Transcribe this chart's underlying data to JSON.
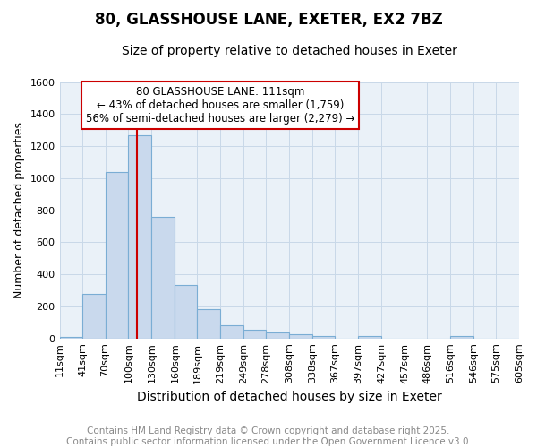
{
  "title1": "80, GLASSHOUSE LANE, EXETER, EX2 7BZ",
  "title2": "Size of property relative to detached houses in Exeter",
  "xlabel": "Distribution of detached houses by size in Exeter",
  "ylabel": "Number of detached properties",
  "bin_labels": [
    "11sqm",
    "41sqm",
    "70sqm",
    "100sqm",
    "130sqm",
    "160sqm",
    "189sqm",
    "219sqm",
    "249sqm",
    "278sqm",
    "308sqm",
    "338sqm",
    "367sqm",
    "397sqm",
    "427sqm",
    "457sqm",
    "486sqm",
    "516sqm",
    "546sqm",
    "575sqm",
    "605sqm"
  ],
  "bin_edges": [
    11,
    41,
    70,
    100,
    130,
    160,
    189,
    219,
    249,
    278,
    308,
    338,
    367,
    397,
    427,
    457,
    486,
    516,
    546,
    575,
    605
  ],
  "bar_heights": [
    10,
    280,
    1040,
    1270,
    760,
    335,
    185,
    80,
    55,
    35,
    25,
    15,
    0,
    15,
    0,
    0,
    0,
    15,
    0,
    0
  ],
  "bar_color": "#c9d9ed",
  "bar_edgecolor": "#7aadd4",
  "vline_x": 111,
  "vline_color": "#cc0000",
  "annotation_line1": "80 GLASSHOUSE LANE: 111sqm",
  "annotation_line2": "← 43% of detached houses are smaller (1,759)",
  "annotation_line3": "56% of semi-detached houses are larger (2,279) →",
  "annotation_box_edgecolor": "#cc0000",
  "annotation_box_facecolor": "#ffffff",
  "ylim": [
    0,
    1600
  ],
  "yticks": [
    0,
    200,
    400,
    600,
    800,
    1000,
    1200,
    1400,
    1600
  ],
  "grid_color": "#c8d8e8",
  "background_color": "#eaf1f8",
  "footer_text": "Contains HM Land Registry data © Crown copyright and database right 2025.\nContains public sector information licensed under the Open Government Licence v3.0.",
  "title1_fontsize": 12,
  "title2_fontsize": 10,
  "xlabel_fontsize": 10,
  "ylabel_fontsize": 9,
  "tick_fontsize": 8,
  "annotation_fontsize": 8.5,
  "footer_fontsize": 7.5
}
